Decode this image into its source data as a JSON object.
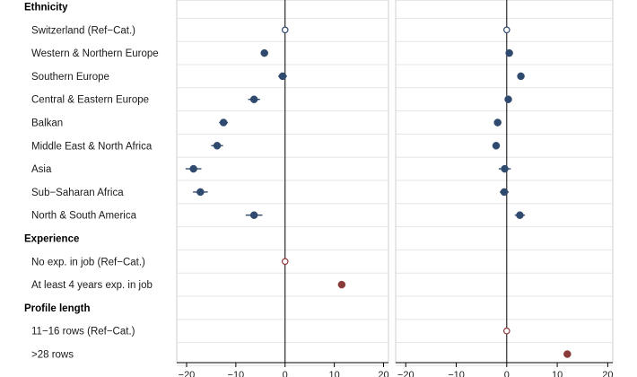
{
  "chart_data": {
    "type": "scatter",
    "style": "coefficient plot with confidence intervals, two panels sharing row labels",
    "colors": {
      "ethnicity": "#2f4a6e",
      "experience": "#8b3a3a",
      "profile": "#8b3a3a",
      "zero_line": "#000000",
      "grid": "#e6e6e6"
    },
    "rows": [
      {
        "label": "Ethnicity",
        "header": true
      },
      {
        "label": "Switzerland (Ref−Cat.)",
        "group": "ethnicity"
      },
      {
        "label": "Western & Northern Europe",
        "group": "ethnicity"
      },
      {
        "label": "Southern Europe",
        "group": "ethnicity"
      },
      {
        "label": "Central & Eastern Europe",
        "group": "ethnicity"
      },
      {
        "label": "Balkan",
        "group": "ethnicity"
      },
      {
        "label": "Middle East & North Africa",
        "group": "ethnicity"
      },
      {
        "label": "Asia",
        "group": "ethnicity"
      },
      {
        "label": "Sub−Saharan Africa",
        "group": "ethnicity"
      },
      {
        "label": "North & South America",
        "group": "ethnicity"
      },
      {
        "label": "Experience",
        "header": true
      },
      {
        "label": "No exp. in job (Ref−Cat.)",
        "group": "experience"
      },
      {
        "label": "At least 4 years exp. in job",
        "group": "experience"
      },
      {
        "label": "Profile length",
        "header": true
      },
      {
        "label": "11−16 rows (Ref−Cat.)",
        "group": "profile"
      },
      {
        "label": ">28 rows",
        "group": "profile"
      }
    ],
    "xlim": [
      -22,
      21
    ],
    "xticks": [
      -20,
      -10,
      0,
      10,
      20
    ],
    "xtick_labels": [
      "−20",
      "−10",
      "0",
      "10",
      "20"
    ],
    "panels": [
      {
        "points": [
          {
            "row": 1,
            "value": 0,
            "lo": 0,
            "hi": 0,
            "ref": true
          },
          {
            "row": 2,
            "value": -4.2,
            "lo": -4.9,
            "hi": -3.5
          },
          {
            "row": 3,
            "value": -0.5,
            "lo": -1.4,
            "hi": 0.4
          },
          {
            "row": 4,
            "value": -6.3,
            "lo": -7.5,
            "hi": -5.1
          },
          {
            "row": 5,
            "value": -12.5,
            "lo": -13.4,
            "hi": -11.6
          },
          {
            "row": 6,
            "value": -13.8,
            "lo": -15.0,
            "hi": -12.6
          },
          {
            "row": 7,
            "value": -18.6,
            "lo": -20.2,
            "hi": -17.0
          },
          {
            "row": 8,
            "value": -17.2,
            "lo": -18.7,
            "hi": -15.7
          },
          {
            "row": 9,
            "value": -6.3,
            "lo": -8.0,
            "hi": -4.6
          },
          {
            "row": 11,
            "value": 0,
            "lo": 0,
            "hi": 0,
            "ref": true
          },
          {
            "row": 12,
            "value": 11.5,
            "lo": 10.9,
            "hi": 12.1
          }
        ]
      },
      {
        "points": [
          {
            "row": 1,
            "value": 0,
            "lo": 0,
            "hi": 0,
            "ref": true
          },
          {
            "row": 2,
            "value": 0.5,
            "lo": 0.1,
            "hi": 0.9
          },
          {
            "row": 3,
            "value": 2.8,
            "lo": 2.4,
            "hi": 3.2
          },
          {
            "row": 4,
            "value": 0.3,
            "lo": -0.3,
            "hi": 0.9
          },
          {
            "row": 5,
            "value": -1.8,
            "lo": -2.4,
            "hi": -1.2
          },
          {
            "row": 6,
            "value": -2.1,
            "lo": -2.8,
            "hi": -1.4
          },
          {
            "row": 7,
            "value": -0.4,
            "lo": -1.6,
            "hi": 0.8
          },
          {
            "row": 8,
            "value": -0.5,
            "lo": -1.4,
            "hi": 0.4
          },
          {
            "row": 9,
            "value": 2.6,
            "lo": 1.6,
            "hi": 3.6
          },
          {
            "row": 14,
            "value": 0,
            "lo": 0,
            "hi": 0,
            "ref": true
          },
          {
            "row": 15,
            "value": 12.0,
            "lo": 11.3,
            "hi": 12.7
          }
        ]
      }
    ]
  }
}
